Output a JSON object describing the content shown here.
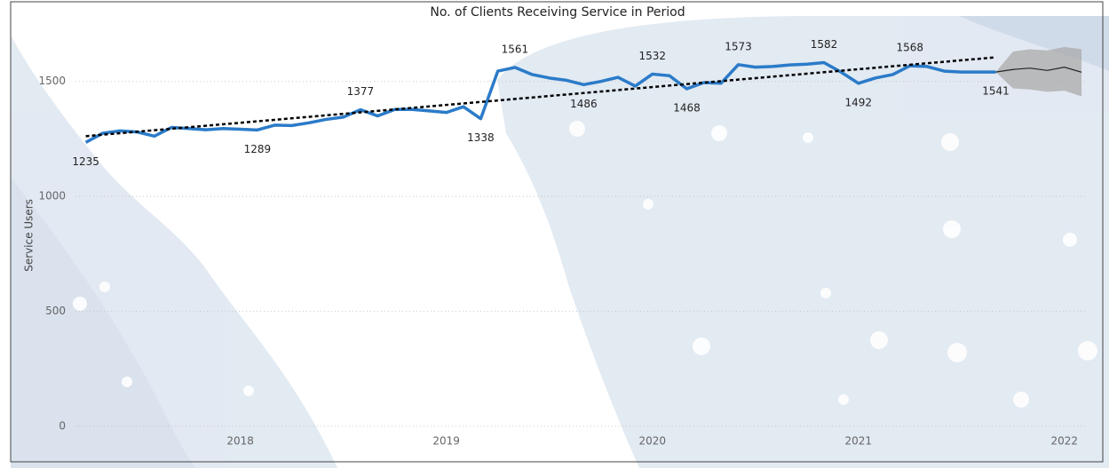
{
  "chart_data": {
    "type": "line",
    "title": "No. of Clients Receiving Service in Period",
    "y_label": "Service Users",
    "xlim": [
      2017.2,
      2022.1
    ],
    "xticks": [
      2018,
      2019,
      2020,
      2021,
      2022
    ],
    "ylim": [
      0,
      1750
    ],
    "yticks": [
      0,
      500,
      1000,
      1500
    ],
    "grid": true,
    "series": [
      {
        "color": "#2b7bc9",
        "x": [
          2017.25,
          2017.333,
          2017.417,
          2017.5,
          2017.583,
          2017.667,
          2017.75,
          2017.833,
          2017.917,
          2018,
          2018.083,
          2018.167,
          2018.25,
          2018.333,
          2018.417,
          2018.5,
          2018.583,
          2018.667,
          2018.75,
          2018.833,
          2018.917,
          2019,
          2019.083,
          2019.167,
          2019.25,
          2019.333,
          2019.417,
          2019.5,
          2019.583,
          2019.667,
          2019.75,
          2019.833,
          2019.917,
          2020,
          2020.083,
          2020.167,
          2020.25,
          2020.333,
          2020.417,
          2020.5,
          2020.583,
          2020.667,
          2020.75,
          2020.833,
          2020.917,
          2021,
          2021.083,
          2021.167,
          2021.25,
          2021.333,
          2021.417,
          2021.5,
          2021.583,
          2021.667
        ],
        "values": [
          1235,
          1275,
          1285,
          1280,
          1262,
          1300,
          1295,
          1290,
          1295,
          1292,
          1289,
          1310,
          1308,
          1320,
          1335,
          1345,
          1377,
          1350,
          1378,
          1378,
          1372,
          1365,
          1390,
          1338,
          1545,
          1561,
          1530,
          1515,
          1505,
          1486,
          1500,
          1518,
          1480,
          1532,
          1525,
          1468,
          1495,
          1492,
          1573,
          1562,
          1565,
          1572,
          1575,
          1582,
          1540,
          1492,
          1515,
          1530,
          1568,
          1565,
          1545,
          1541,
          1541,
          1541
        ],
        "value_labels": [
          "1235",
          null,
          null,
          null,
          null,
          null,
          null,
          null,
          null,
          null,
          "1289",
          null,
          null,
          null,
          null,
          null,
          "1377",
          null,
          null,
          null,
          null,
          null,
          null,
          "1338",
          null,
          "1561",
          null,
          null,
          null,
          "1486",
          null,
          null,
          null,
          "1532",
          null,
          "1468",
          null,
          null,
          "1573",
          null,
          null,
          null,
          null,
          "1582",
          null,
          "1492",
          null,
          null,
          "1568",
          null,
          null,
          null,
          null,
          "1541"
        ]
      }
    ],
    "trend": {
      "color": "#000000",
      "x": [
        2017.25,
        2021.667
      ],
      "values": [
        1262,
        1605
      ]
    },
    "forecast": {
      "color": "#222222",
      "band_color": "#a9a9a9",
      "x": [
        2021.667,
        2021.75,
        2021.833,
        2021.917,
        2022,
        2022.083
      ],
      "values": [
        1541,
        1552,
        1558,
        1548,
        1562,
        1540
      ],
      "upper": [
        1541,
        1630,
        1640,
        1635,
        1650,
        1640
      ],
      "lower": [
        1541,
        1470,
        1465,
        1455,
        1460,
        1435
      ]
    }
  }
}
